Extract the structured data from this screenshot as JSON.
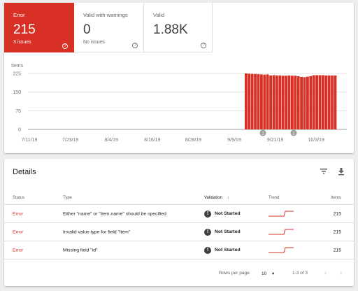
{
  "summary": {
    "error": {
      "label": "Error",
      "value": "215",
      "sub": "3 issues",
      "color": "#d93025"
    },
    "warnings": {
      "label": "Valid with warnings",
      "value": "0",
      "sub": "No issues"
    },
    "valid": {
      "label": "Valid",
      "value": "1.88K",
      "sub": ""
    }
  },
  "chart_data": {
    "type": "bar",
    "ylabel": "Items",
    "yticks": [
      "225",
      "150",
      "75",
      "0"
    ],
    "ylim": [
      0,
      225
    ],
    "xticks": [
      "7/11/19",
      "7/23/19",
      "8/4/19",
      "8/16/19",
      "8/28/19",
      "9/9/19",
      "9/21/19",
      "10/3/19"
    ],
    "color": "#d93025",
    "values": [
      225,
      224,
      223,
      223,
      222,
      221,
      220,
      221,
      217,
      218,
      217,
      217,
      216,
      216,
      217,
      216,
      216,
      214,
      211,
      210,
      212,
      214,
      218,
      218,
      218,
      218,
      217,
      217,
      217,
      217
    ],
    "annotations": [
      "2",
      "1"
    ]
  },
  "details": {
    "title": "Details",
    "icons": [
      "filter-icon",
      "download-icon"
    ],
    "columns": {
      "status": "Status",
      "type": "Type",
      "validation": "Validation",
      "trend": "Trend",
      "items": "Items"
    },
    "rows": [
      {
        "status": "Error",
        "type": "Either \"name\" or \"item.name\" should be specified",
        "validation": "Not Started",
        "items": "215"
      },
      {
        "status": "Error",
        "type": "Invalid value type for field \"item\"",
        "validation": "Not Started",
        "items": "215"
      },
      {
        "status": "Error",
        "type": "Missing field \"id\"",
        "validation": "Not Started",
        "items": "215"
      }
    ],
    "pager": {
      "rows_label": "Rows per page:",
      "rows_value": "10",
      "range": "1-3 of 3"
    }
  }
}
